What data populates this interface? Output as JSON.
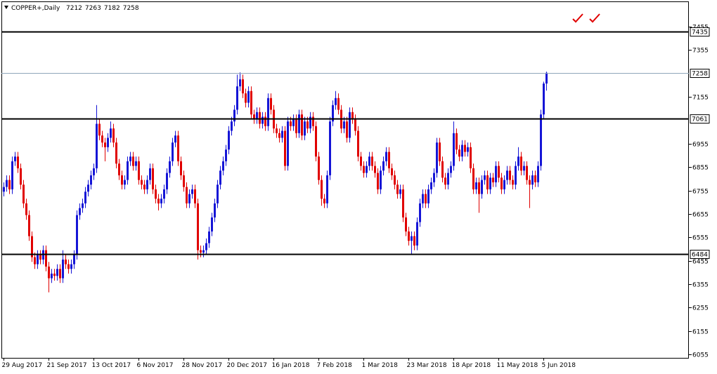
{
  "chart_data": {
    "type": "candlestick",
    "symbol": "COPPER+,Daily",
    "up_color": "#1515d6",
    "down_color": "#e00000",
    "ylim": [
      6040,
      7563
    ],
    "yticks": [
      7455,
      7355,
      7155,
      6955,
      6855,
      6755,
      6655,
      6555,
      6455,
      6355,
      6255,
      6155,
      6055
    ],
    "xlim": [
      -0.75,
      243.75
    ],
    "xticks": [
      {
        "value": 0,
        "label": "29 Aug 2017"
      },
      {
        "value": 16,
        "label": "21 Sep 2017"
      },
      {
        "value": 32,
        "label": "13 Oct 2017"
      },
      {
        "value": 48,
        "label": "6 Nov 2017"
      },
      {
        "value": 64,
        "label": "28 Nov 2017"
      },
      {
        "value": 80,
        "label": "20 Dec 2017"
      },
      {
        "value": 96,
        "label": "16 Jan 2018"
      },
      {
        "value": 112,
        "label": "7 Feb 2018"
      },
      {
        "value": 128,
        "label": "1 Mar 2018"
      },
      {
        "value": 144,
        "label": "23 Mar 2018"
      },
      {
        "value": 160,
        "label": "18 Apr 2018"
      },
      {
        "value": 176,
        "label": "11 May 2018"
      },
      {
        "value": 192,
        "label": "5 Jun 2018"
      }
    ],
    "levels": [
      7435,
      7061,
      6484
    ],
    "price_line_color": "#8fa6ba",
    "ohlc": [
      [
        6750,
        6790,
        6730,
        6770
      ],
      [
        6770,
        6820,
        6750,
        6800
      ],
      [
        6800,
        6820,
        6740,
        6760
      ],
      [
        6760,
        6900,
        6740,
        6880
      ],
      [
        6880,
        6920,
        6860,
        6900
      ],
      [
        6900,
        6920,
        6830,
        6850
      ],
      [
        6850,
        6870,
        6760,
        6780
      ],
      [
        6780,
        6800,
        6680,
        6700
      ],
      [
        6700,
        6720,
        6630,
        6650
      ],
      [
        6650,
        6670,
        6540,
        6560
      ],
      [
        6560,
        6580,
        6450,
        6470
      ],
      [
        6470,
        6490,
        6420,
        6440
      ],
      [
        6440,
        6500,
        6420,
        6480
      ],
      [
        6480,
        6500,
        6440,
        6460
      ],
      [
        6460,
        6520,
        6440,
        6500
      ],
      [
        6500,
        6520,
        6410,
        6430
      ],
      [
        6430,
        6450,
        6320,
        6380
      ],
      [
        6380,
        6420,
        6360,
        6400
      ],
      [
        6400,
        6420,
        6370,
        6390
      ],
      [
        6390,
        6440,
        6370,
        6420
      ],
      [
        6420,
        6440,
        6360,
        6380
      ],
      [
        6380,
        6500,
        6360,
        6460
      ],
      [
        6460,
        6480,
        6420,
        6440
      ],
      [
        6440,
        6460,
        6400,
        6420
      ],
      [
        6420,
        6460,
        6400,
        6440
      ],
      [
        6440,
        6500,
        6420,
        6480
      ],
      [
        6480,
        6670,
        6460,
        6650
      ],
      [
        6650,
        6700,
        6630,
        6680
      ],
      [
        6680,
        6720,
        6660,
        6700
      ],
      [
        6700,
        6770,
        6680,
        6750
      ],
      [
        6750,
        6800,
        6730,
        6780
      ],
      [
        6780,
        6840,
        6760,
        6820
      ],
      [
        6820,
        6870,
        6800,
        6850
      ],
      [
        6850,
        7120,
        6830,
        7040
      ],
      [
        7040,
        7060,
        6970,
        6990
      ],
      [
        6990,
        7010,
        6940,
        6960
      ],
      [
        6960,
        6980,
        6880,
        6940
      ],
      [
        6940,
        7000,
        6920,
        6980
      ],
      [
        6980,
        7050,
        6960,
        7020
      ],
      [
        7020,
        7040,
        6940,
        6960
      ],
      [
        6960,
        6980,
        6850,
        6870
      ],
      [
        6870,
        6890,
        6800,
        6820
      ],
      [
        6820,
        6840,
        6760,
        6780
      ],
      [
        6780,
        6820,
        6760,
        6800
      ],
      [
        6800,
        6900,
        6780,
        6880
      ],
      [
        6880,
        6920,
        6860,
        6900
      ],
      [
        6900,
        6920,
        6840,
        6860
      ],
      [
        6860,
        6900,
        6840,
        6880
      ],
      [
        6880,
        6900,
        6780,
        6800
      ],
      [
        6800,
        6820,
        6760,
        6780
      ],
      [
        6780,
        6800,
        6740,
        6760
      ],
      [
        6760,
        6820,
        6740,
        6800
      ],
      [
        6800,
        6870,
        6780,
        6850
      ],
      [
        6850,
        6870,
        6740,
        6760
      ],
      [
        6760,
        6780,
        6700,
        6720
      ],
      [
        6720,
        6740,
        6670,
        6700
      ],
      [
        6700,
        6740,
        6680,
        6720
      ],
      [
        6720,
        6780,
        6700,
        6760
      ],
      [
        6760,
        6850,
        6740,
        6830
      ],
      [
        6830,
        6900,
        6810,
        6880
      ],
      [
        6880,
        6980,
        6860,
        6960
      ],
      [
        6960,
        7010,
        6940,
        6990
      ],
      [
        6990,
        7010,
        6860,
        6880
      ],
      [
        6880,
        6900,
        6800,
        6820
      ],
      [
        6820,
        6840,
        6750,
        6770
      ],
      [
        6770,
        6790,
        6680,
        6700
      ],
      [
        6700,
        6760,
        6680,
        6740
      ],
      [
        6740,
        6780,
        6720,
        6760
      ],
      [
        6760,
        6780,
        6680,
        6700
      ],
      [
        6700,
        6720,
        6460,
        6500
      ],
      [
        6500,
        6520,
        6470,
        6490
      ],
      [
        6490,
        6520,
        6470,
        6500
      ],
      [
        6500,
        6550,
        6480,
        6530
      ],
      [
        6530,
        6600,
        6510,
        6580
      ],
      [
        6580,
        6660,
        6560,
        6640
      ],
      [
        6640,
        6720,
        6620,
        6700
      ],
      [
        6700,
        6800,
        6680,
        6780
      ],
      [
        6780,
        6860,
        6760,
        6840
      ],
      [
        6840,
        6900,
        6820,
        6880
      ],
      [
        6880,
        6950,
        6860,
        6930
      ],
      [
        6930,
        7030,
        6910,
        7010
      ],
      [
        7010,
        7070,
        6990,
        7050
      ],
      [
        7050,
        7120,
        7030,
        7100
      ],
      [
        7100,
        7250,
        7080,
        7200
      ],
      [
        7200,
        7260,
        7180,
        7230
      ],
      [
        7230,
        7250,
        7150,
        7170
      ],
      [
        7170,
        7190,
        7110,
        7130
      ],
      [
        7130,
        7200,
        7110,
        7180
      ],
      [
        7180,
        7200,
        7060,
        7080
      ],
      [
        7080,
        7100,
        7040,
        7060
      ],
      [
        7060,
        7110,
        7040,
        7090
      ],
      [
        7090,
        7110,
        7020,
        7040
      ],
      [
        7040,
        7090,
        7020,
        7070
      ],
      [
        7070,
        7090,
        7010,
        7030
      ],
      [
        7030,
        7170,
        7010,
        7150
      ],
      [
        7150,
        7170,
        7080,
        7100
      ],
      [
        7100,
        7120,
        7000,
        7020
      ],
      [
        7020,
        7040,
        6980,
        7000
      ],
      [
        7000,
        7020,
        6960,
        6980
      ],
      [
        6980,
        7030,
        6960,
        7010
      ],
      [
        7010,
        7030,
        6840,
        6860
      ],
      [
        6860,
        7070,
        6840,
        7050
      ],
      [
        7050,
        7070,
        7010,
        7030
      ],
      [
        7030,
        7080,
        7010,
        7060
      ],
      [
        7060,
        7080,
        6980,
        7000
      ],
      [
        7000,
        7100,
        6980,
        7080
      ],
      [
        7080,
        7100,
        6970,
        6990
      ],
      [
        6990,
        7070,
        6970,
        7050
      ],
      [
        7050,
        7070,
        7000,
        7020
      ],
      [
        7020,
        7090,
        7000,
        7070
      ],
      [
        7070,
        7090,
        7010,
        7030
      ],
      [
        7030,
        7050,
        6880,
        6900
      ],
      [
        6900,
        6920,
        6780,
        6800
      ],
      [
        6800,
        6820,
        6690,
        6720
      ],
      [
        6720,
        6740,
        6680,
        6700
      ],
      [
        6700,
        6840,
        6680,
        6820
      ],
      [
        6820,
        7070,
        6800,
        7050
      ],
      [
        7050,
        7140,
        7030,
        7120
      ],
      [
        7120,
        7180,
        7100,
        7150
      ],
      [
        7150,
        7170,
        7080,
        7100
      ],
      [
        7100,
        7120,
        7000,
        7020
      ],
      [
        7020,
        7070,
        7000,
        7050
      ],
      [
        7050,
        7070,
        6960,
        6980
      ],
      [
        6980,
        7110,
        6960,
        7090
      ],
      [
        7090,
        7110,
        7040,
        7060
      ],
      [
        7060,
        7080,
        6990,
        7010
      ],
      [
        7010,
        7030,
        6880,
        6900
      ],
      [
        6900,
        6920,
        6840,
        6860
      ],
      [
        6860,
        6880,
        6810,
        6830
      ],
      [
        6830,
        6880,
        6810,
        6860
      ],
      [
        6860,
        6920,
        6840,
        6900
      ],
      [
        6900,
        6920,
        6840,
        6860
      ],
      [
        6860,
        6880,
        6810,
        6830
      ],
      [
        6830,
        6850,
        6740,
        6760
      ],
      [
        6760,
        6860,
        6740,
        6840
      ],
      [
        6840,
        6900,
        6820,
        6880
      ],
      [
        6880,
        6940,
        6860,
        6920
      ],
      [
        6920,
        6940,
        6830,
        6850
      ],
      [
        6850,
        6870,
        6800,
        6820
      ],
      [
        6820,
        6840,
        6760,
        6780
      ],
      [
        6780,
        6800,
        6720,
        6740
      ],
      [
        6740,
        6780,
        6720,
        6760
      ],
      [
        6760,
        6780,
        6620,
        6640
      ],
      [
        6640,
        6660,
        6560,
        6580
      ],
      [
        6580,
        6600,
        6520,
        6540
      ],
      [
        6540,
        6580,
        6480,
        6560
      ],
      [
        6560,
        6580,
        6500,
        6520
      ],
      [
        6520,
        6640,
        6500,
        6620
      ],
      [
        6620,
        6720,
        6600,
        6700
      ],
      [
        6700,
        6760,
        6680,
        6740
      ],
      [
        6740,
        6760,
        6680,
        6700
      ],
      [
        6700,
        6780,
        6680,
        6760
      ],
      [
        6760,
        6810,
        6740,
        6790
      ],
      [
        6790,
        6850,
        6770,
        6830
      ],
      [
        6830,
        6980,
        6810,
        6960
      ],
      [
        6960,
        6980,
        6860,
        6880
      ],
      [
        6880,
        6900,
        6790,
        6810
      ],
      [
        6810,
        6830,
        6760,
        6780
      ],
      [
        6780,
        6850,
        6760,
        6830
      ],
      [
        6830,
        6880,
        6810,
        6860
      ],
      [
        6860,
        7050,
        6840,
        7000
      ],
      [
        7000,
        7020,
        6910,
        6930
      ],
      [
        6930,
        6950,
        6880,
        6900
      ],
      [
        6900,
        6970,
        6880,
        6950
      ],
      [
        6950,
        6970,
        6900,
        6920
      ],
      [
        6920,
        6960,
        6900,
        6940
      ],
      [
        6940,
        6960,
        6830,
        6850
      ],
      [
        6850,
        6870,
        6740,
        6760
      ],
      [
        6760,
        6810,
        6740,
        6790
      ],
      [
        6790,
        6810,
        6660,
        6740
      ],
      [
        6740,
        6820,
        6720,
        6800
      ],
      [
        6800,
        6840,
        6780,
        6820
      ],
      [
        6820,
        6840,
        6740,
        6760
      ],
      [
        6760,
        6830,
        6740,
        6810
      ],
      [
        6810,
        6830,
        6770,
        6790
      ],
      [
        6790,
        6880,
        6770,
        6860
      ],
      [
        6860,
        6880,
        6790,
        6810
      ],
      [
        6810,
        6830,
        6740,
        6760
      ],
      [
        6760,
        6820,
        6740,
        6800
      ],
      [
        6800,
        6860,
        6780,
        6840
      ],
      [
        6840,
        6860,
        6780,
        6800
      ],
      [
        6800,
        6820,
        6760,
        6780
      ],
      [
        6780,
        6880,
        6760,
        6860
      ],
      [
        6860,
        6940,
        6840,
        6900
      ],
      [
        6900,
        6920,
        6820,
        6840
      ],
      [
        6840,
        6880,
        6820,
        6860
      ],
      [
        6860,
        6880,
        6780,
        6800
      ],
      [
        6800,
        6820,
        6680,
        6780
      ],
      [
        6780,
        6840,
        6760,
        6820
      ],
      [
        6820,
        6840,
        6770,
        6790
      ],
      [
        6790,
        6880,
        6770,
        6860
      ],
      [
        6860,
        7100,
        6840,
        7080
      ],
      [
        7080,
        7220,
        7060,
        7212
      ],
      [
        7212,
        7263,
        7182,
        7258
      ]
    ]
  }
}
